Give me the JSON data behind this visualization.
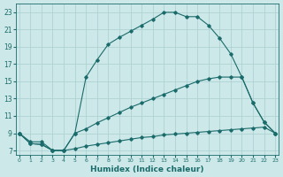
{
  "line1_x": [
    0,
    1,
    2,
    3,
    4,
    5,
    6,
    7,
    8,
    9,
    10,
    11,
    12,
    13,
    14,
    15,
    16,
    17,
    18,
    19,
    20,
    21,
    22,
    23
  ],
  "line1_y": [
    9,
    8,
    8,
    7,
    7,
    9,
    15.5,
    17.5,
    19.3,
    20.1,
    20.8,
    21.5,
    22.2,
    23,
    23,
    22.5,
    22.5,
    21.5,
    20,
    18.2,
    15.5,
    12.5,
    10.3,
    9
  ],
  "line2_x": [
    0,
    1,
    2,
    3,
    4,
    5,
    6,
    7,
    8,
    9,
    10,
    11,
    12,
    13,
    14,
    15,
    16,
    17,
    18,
    19,
    20,
    21,
    22,
    23
  ],
  "line2_y": [
    9,
    7.8,
    7.7,
    7,
    7,
    7.2,
    7.5,
    7.7,
    7.9,
    8.1,
    8.3,
    8.5,
    8.6,
    8.8,
    8.9,
    9.0,
    9.1,
    9.2,
    9.3,
    9.4,
    9.5,
    9.6,
    9.7,
    9
  ],
  "line3_x": [
    0,
    1,
    2,
    3,
    4,
    5,
    6,
    7,
    8,
    9,
    10,
    11,
    12,
    13,
    14,
    15,
    16,
    17,
    18,
    19,
    20,
    21,
    22,
    23
  ],
  "line3_y": [
    9,
    7.8,
    7.7,
    7,
    7,
    9,
    9.5,
    10.2,
    10.8,
    11.4,
    12.0,
    12.5,
    13.0,
    13.5,
    14.0,
    14.5,
    15.0,
    15.3,
    15.5,
    15.5,
    15.5,
    12.5,
    10.3,
    9
  ],
  "color": "#1a6b6b",
  "bg_color": "#cde8e8",
  "grid_color": "#aacece",
  "xlabel": "Humidex (Indice chaleur)",
  "xlabel_fontsize": 6.5,
  "yticks": [
    7,
    9,
    11,
    13,
    15,
    17,
    19,
    21,
    23
  ],
  "xticks": [
    0,
    1,
    2,
    3,
    4,
    5,
    6,
    7,
    8,
    9,
    10,
    11,
    12,
    13,
    14,
    15,
    16,
    17,
    18,
    19,
    20,
    21,
    22,
    23
  ],
  "xlim": [
    -0.3,
    23.3
  ],
  "ylim": [
    6.5,
    24.0
  ],
  "markersize": 1.8,
  "linewidth": 0.8
}
